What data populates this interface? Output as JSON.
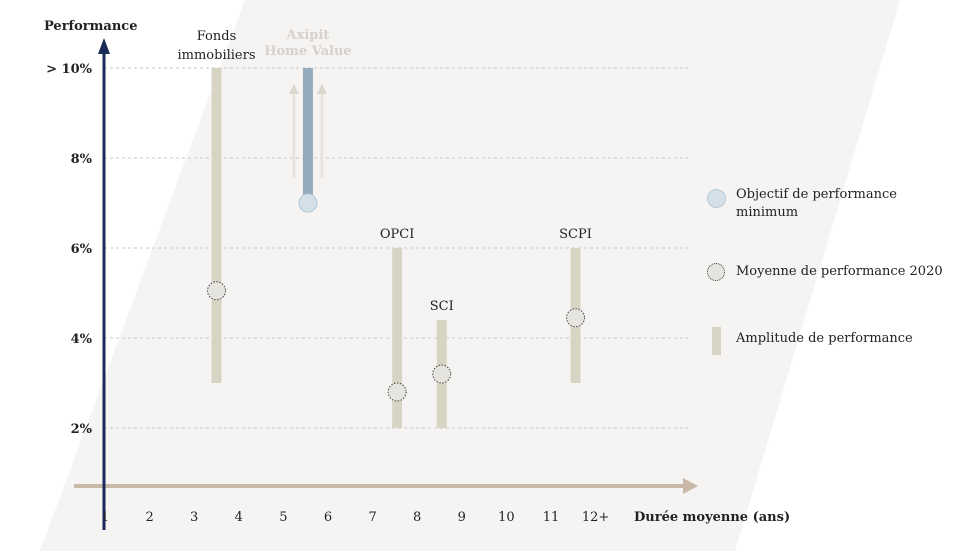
{
  "chart_data": {
    "type": "range-bar",
    "ylabel": "Performance",
    "xlabel": "Durée moyenne (ans)",
    "x_ticks": [
      "1",
      "2",
      "3",
      "4",
      "5",
      "6",
      "7",
      "8",
      "9",
      "10",
      "11",
      "12+"
    ],
    "y_ticks": [
      {
        "value": 2,
        "label": "2%"
      },
      {
        "value": 4,
        "label": "4%"
      },
      {
        "value": 6,
        "label": "6%"
      },
      {
        "value": 8,
        "label": "8%"
      },
      {
        "value": 10,
        "label": "> 10%"
      }
    ],
    "ylim": [
      0.6,
      10
    ],
    "xlim": [
      1,
      12.2
    ],
    "series": [
      {
        "name": "Fonds immobiliers",
        "label_lines": [
          "Fonds",
          "immobiliers"
        ],
        "x": 3.5,
        "low": 3.0,
        "high": 10,
        "average": 5.05
      },
      {
        "name": "OPCI",
        "label_lines": [
          "OPCI"
        ],
        "x": 7.55,
        "low": 2.0,
        "high": 6.0,
        "average": 2.8
      },
      {
        "name": "SCI",
        "label_lines": [
          "SCI"
        ],
        "x": 8.55,
        "low": 2.0,
        "high": 4.4,
        "average": 3.2
      },
      {
        "name": "SCPI",
        "label_lines": [
          "SCPI"
        ],
        "x": 11.55,
        "low": 3.0,
        "high": 6.0,
        "average": 4.45
      }
    ],
    "highlight": {
      "name": "Axipit Home Value",
      "label_lines": [
        "Axipit",
        "Home Value"
      ],
      "x": 5.55,
      "minimum": 7.0,
      "high": 10
    },
    "colors": {
      "range_bar": "#d8d4c4",
      "highlight_bar": "#93abbd",
      "highlight_dot": "#d3e0e8",
      "axis_y": "#1c2a5a",
      "axis_x": "#c9b9a8",
      "grid": "#c8c8c8",
      "highlight_label": "#d7d1c9"
    },
    "grid": true,
    "legend_position": "right"
  },
  "legend": {
    "items": [
      {
        "marker": "objective-dot",
        "label": "Objectif de performance minimum"
      },
      {
        "marker": "average-dot",
        "label": "Moyenne de performance 2020"
      },
      {
        "marker": "range-bar",
        "label": "Amplitude de performance"
      }
    ]
  }
}
